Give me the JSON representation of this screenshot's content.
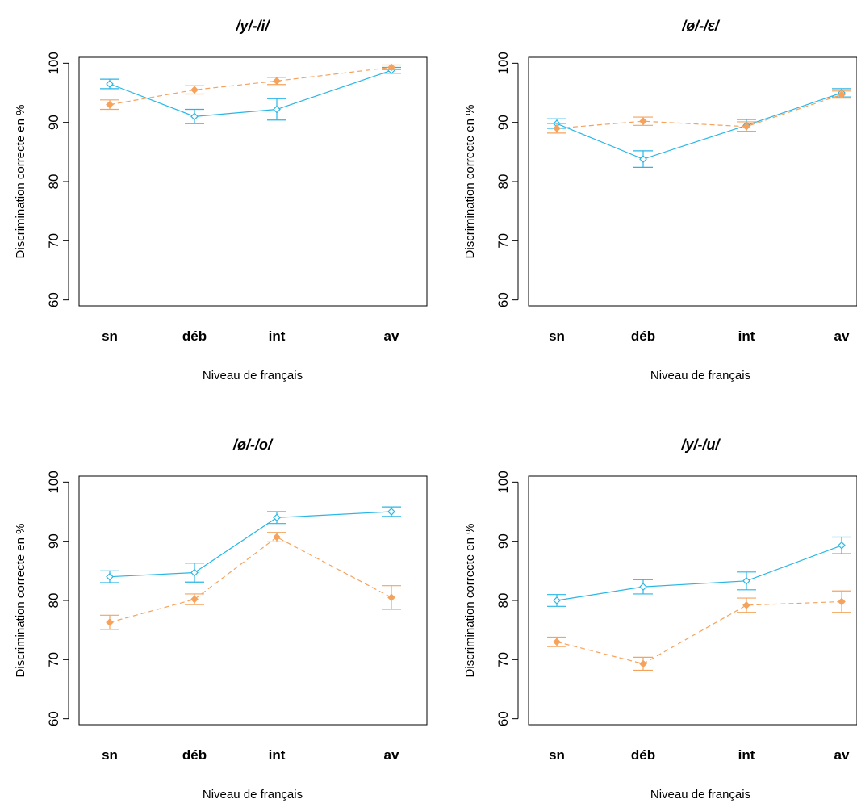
{
  "colors": {
    "blue": "#29b6e6",
    "orange": "#f5a25d",
    "frame": "#000000"
  },
  "chart_data": [
    {
      "type": "line",
      "title": "/y/-/i/",
      "xlabel": "Niveau de français",
      "ylabel": "Discrimination correcte en %",
      "categories": [
        "sn",
        "déb",
        "int",
        "av"
      ],
      "yticks": [
        "60",
        "70",
        "80",
        "90",
        "100"
      ],
      "ylim": [
        59,
        101
      ],
      "series": [
        {
          "marker": "open-diamond",
          "line": "solid",
          "color": "#29b6e6",
          "values": [
            96.5,
            91.0,
            92.2,
            98.8
          ],
          "err": [
            0.8,
            1.2,
            1.8,
            0.5
          ]
        },
        {
          "marker": "filled-diamond",
          "line": "dashed",
          "color": "#f5a25d",
          "values": [
            93.0,
            95.5,
            97.0,
            99.3
          ],
          "err": [
            0.8,
            0.7,
            0.6,
            0.4
          ]
        }
      ]
    },
    {
      "type": "line",
      "title": "/ø/-/ɛ/",
      "xlabel": "Niveau de français",
      "ylabel": "Discrimination correcte en %",
      "categories": [
        "sn",
        "déb",
        "int",
        "av"
      ],
      "yticks": [
        "60",
        "70",
        "80",
        "90",
        "100"
      ],
      "ylim": [
        59,
        101
      ],
      "series": [
        {
          "marker": "open-diamond",
          "line": "solid",
          "color": "#29b6e6",
          "values": [
            89.8,
            83.8,
            89.5,
            95.0
          ],
          "err": [
            0.8,
            1.4,
            1.0,
            0.7
          ]
        },
        {
          "marker": "filled-diamond",
          "line": "dashed",
          "color": "#f5a25d",
          "values": [
            89.0,
            90.2,
            89.3,
            94.7
          ],
          "err": [
            0.8,
            0.7,
            0.8,
            0.6
          ]
        }
      ]
    },
    {
      "type": "line",
      "title": "/ø/-/o/",
      "xlabel": "Niveau de français",
      "ylabel": "Discrimination correcte en %",
      "categories": [
        "sn",
        "déb",
        "int",
        "av"
      ],
      "yticks": [
        "60",
        "70",
        "80",
        "90",
        "100"
      ],
      "ylim": [
        59,
        101
      ],
      "series": [
        {
          "marker": "open-diamond",
          "line": "solid",
          "color": "#29b6e6",
          "values": [
            84.0,
            84.7,
            94.0,
            95.0
          ],
          "err": [
            1.0,
            1.6,
            1.0,
            0.8
          ]
        },
        {
          "marker": "filled-diamond",
          "line": "dashed",
          "color": "#f5a25d",
          "values": [
            76.3,
            80.2,
            90.7,
            80.5
          ],
          "err": [
            1.2,
            0.9,
            0.8,
            2.0
          ]
        }
      ]
    },
    {
      "type": "line",
      "title": "/y/-/u/",
      "xlabel": "Niveau de français",
      "ylabel": "Discrimination correcte en %",
      "categories": [
        "sn",
        "déb",
        "int",
        "av"
      ],
      "yticks": [
        "60",
        "70",
        "80",
        "90",
        "100"
      ],
      "ylim": [
        59,
        101
      ],
      "series": [
        {
          "marker": "open-diamond",
          "line": "solid",
          "color": "#29b6e6",
          "values": [
            80.0,
            82.3,
            83.3,
            89.3
          ],
          "err": [
            1.0,
            1.2,
            1.5,
            1.4
          ]
        },
        {
          "marker": "filled-diamond",
          "line": "dashed",
          "color": "#f5a25d",
          "values": [
            73.0,
            69.3,
            79.2,
            79.8
          ],
          "err": [
            0.8,
            1.1,
            1.2,
            1.8
          ]
        }
      ]
    }
  ]
}
